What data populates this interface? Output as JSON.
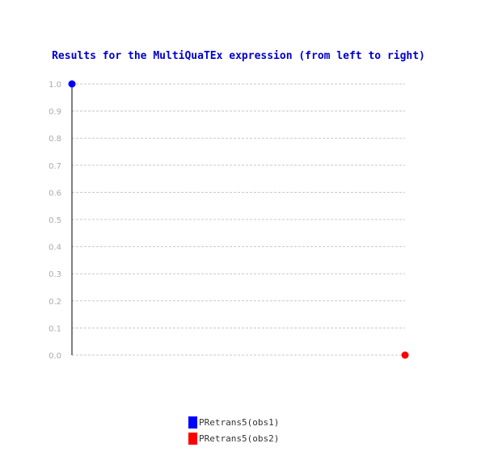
{
  "chart_data": {
    "type": "scatter",
    "title": "Results for the MultiQuaTEx expression (from left to right)",
    "xlabel": "",
    "ylabel": "",
    "ylim": [
      0.0,
      1.0
    ],
    "yticks": [
      "0.0",
      "0.1",
      "0.2",
      "0.3",
      "0.4",
      "0.5",
      "0.6",
      "0.7",
      "0.8",
      "0.9",
      "1.0"
    ],
    "grid": true,
    "legend_position": "bottom-center",
    "series": [
      {
        "name": "PRetrans5(obs1)",
        "color": "#0000ff",
        "x": [
          1
        ],
        "y": [
          1.0
        ]
      },
      {
        "name": "PRetrans5(obs2)",
        "color": "#ff0000",
        "x": [
          2
        ],
        "y": [
          0.0
        ]
      }
    ]
  }
}
